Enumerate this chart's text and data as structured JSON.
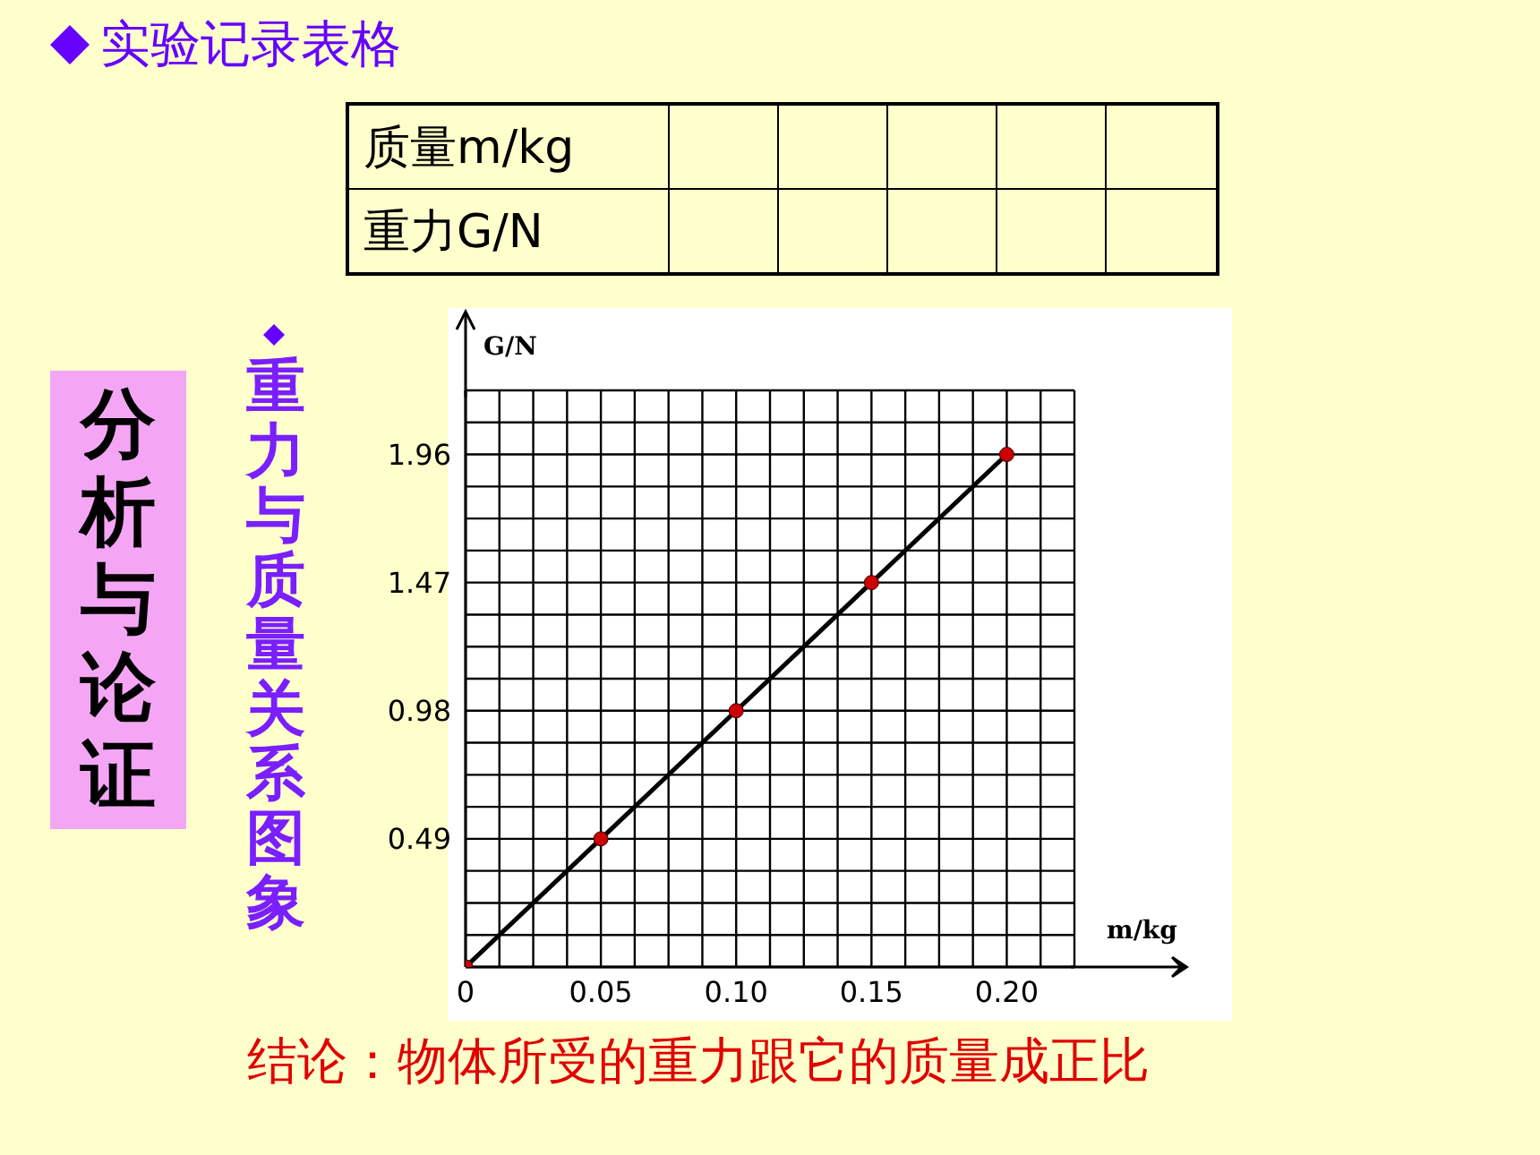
{
  "chart_data": {
    "type": "line",
    "title": "重力与质量关系图象",
    "xlabel": "m/kg",
    "ylabel": "G/N",
    "x": [
      0,
      0.05,
      0.1,
      0.15,
      0.2
    ],
    "series": [
      {
        "type": "line",
        "color": "#000000",
        "marker": "none",
        "values": [
          0,
          0.49,
          0.98,
          1.47,
          1.96
        ]
      },
      {
        "type": "scatter",
        "color": "#cc0000",
        "marker": "circle",
        "values": [
          0,
          0.49,
          0.98,
          1.47,
          1.96
        ]
      }
    ],
    "xlim": [
      0,
      0.225
    ],
    "ylim": [
      0,
      2.205
    ],
    "xticks": [
      {
        "value": 0,
        "label": "0"
      },
      {
        "value": 0.0125,
        "label": null
      },
      {
        "value": 0.025,
        "label": null
      },
      {
        "value": 0.0375,
        "label": null
      },
      0.05,
      {
        "value": 0.0625,
        "label": null
      },
      {
        "value": 0.075,
        "label": null
      },
      {
        "value": 0.0875,
        "label": null
      },
      {
        "value": 0.1,
        "label": "0.10"
      },
      {
        "value": 0.1125,
        "label": null
      },
      {
        "value": 0.125,
        "label": null
      },
      {
        "value": 0.1375,
        "label": null
      },
      0.15,
      {
        "value": 0.1625,
        "label": null
      },
      {
        "value": 0.175,
        "label": null
      },
      {
        "value": 0.1875,
        "label": null
      },
      {
        "value": 0.2,
        "label": "0.20"
      },
      {
        "value": 0.2125,
        "label": null
      },
      {
        "value": 0.225,
        "label": null
      }
    ],
    "yticks": [
      {
        "value": 0,
        "label": null
      },
      {
        "value": 0.1225,
        "label": null
      },
      {
        "value": 0.245,
        "label": null
      },
      {
        "value": 0.3675,
        "label": null
      },
      0.49,
      {
        "value": 0.6125,
        "label": null
      },
      {
        "value": 0.735,
        "label": null
      },
      {
        "value": 0.8575,
        "label": null
      },
      0.98,
      {
        "value": 1.1025,
        "label": null
      },
      {
        "value": 1.225,
        "label": null
      },
      {
        "value": 1.3475,
        "label": null
      },
      1.47,
      {
        "value": 1.5925,
        "label": null
      },
      {
        "value": 1.715,
        "label": null
      },
      {
        "value": 1.8375,
        "label": null
      },
      1.96,
      {
        "value": 2.0825,
        "label": null
      },
      {
        "value": 2.205,
        "label": null
      }
    ],
    "grid": true,
    "annotations": [
      "实验记录表格",
      "质量m/kg",
      "重力G/N",
      "分析与论证",
      "结论：物体所受的重力跟它的质量成正比"
    ]
  }
}
